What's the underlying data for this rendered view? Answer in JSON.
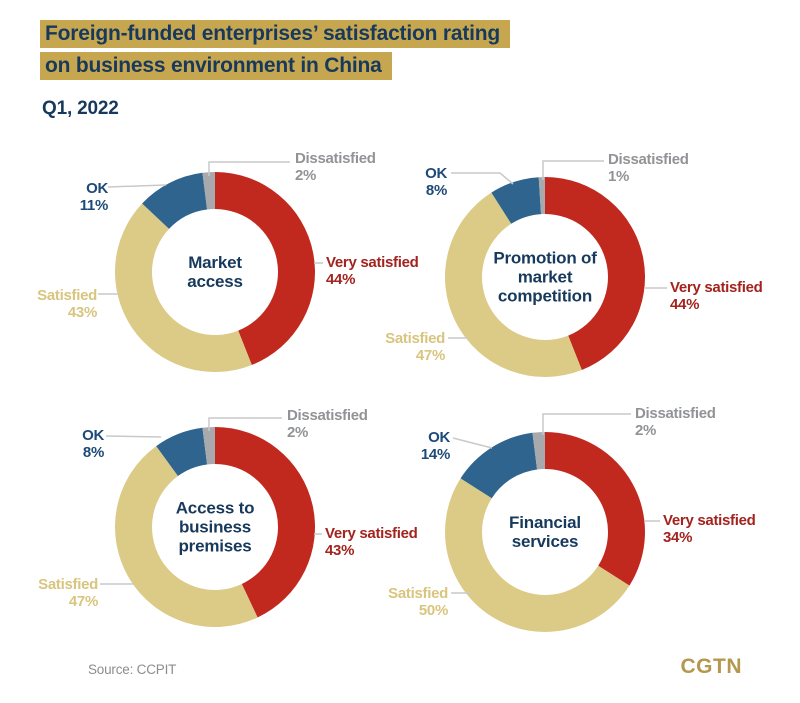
{
  "title": {
    "line1": "Foreign-funded enterprises’ satisfaction rating",
    "line2": "on business environment in China"
  },
  "subtitle": "Q1, 2022",
  "source": "Source: CCPIT",
  "logo": "CGTN",
  "colors": {
    "very_satisfied": "#c1291f",
    "satisfied": "#dcca87",
    "ok": "#2f648f",
    "dissatisfied": "#a7a9ac",
    "label_very_satisfied": "#a3231e",
    "label_satisfied": "#d8c57e",
    "label_ok": "#1d4a78",
    "label_dissatisfied": "#919396",
    "navy_text": "#17395c",
    "title_highlight": "#c6a64f",
    "logo_gold": "#b5984f"
  },
  "chart_data": [
    {
      "type": "donut",
      "title": "Market access",
      "center_text": "Market\naccess",
      "segments": [
        {
          "label": "Very satisfied",
          "value": 44,
          "display": "44%"
        },
        {
          "label": "Satisfied",
          "value": 43,
          "display": "43%"
        },
        {
          "label": "OK",
          "value": 11,
          "display": "11%"
        },
        {
          "label": "Dissatisfied",
          "value": 2,
          "display": "2%"
        }
      ]
    },
    {
      "type": "donut",
      "title": "Promotion of market competition",
      "center_text": "Promotion of\nmarket\ncompetition",
      "segments": [
        {
          "label": "Very satisfied",
          "value": 44,
          "display": "44%"
        },
        {
          "label": "Satisfied",
          "value": 47,
          "display": "47%"
        },
        {
          "label": "OK",
          "value": 8,
          "display": "8%"
        },
        {
          "label": "Dissatisfied",
          "value": 1,
          "display": "1%"
        }
      ]
    },
    {
      "type": "donut",
      "title": "Access to business premises",
      "center_text": "Access to\nbusiness\npremises",
      "segments": [
        {
          "label": "Very satisfied",
          "value": 43,
          "display": "43%"
        },
        {
          "label": "Satisfied",
          "value": 47,
          "display": "47%"
        },
        {
          "label": "OK",
          "value": 8,
          "display": "8%"
        },
        {
          "label": "Dissatisfied",
          "value": 2,
          "display": "2%"
        }
      ]
    },
    {
      "type": "donut",
      "title": "Financial services",
      "center_text": "Financial\nservices",
      "segments": [
        {
          "label": "Very satisfied",
          "value": 34,
          "display": "34%"
        },
        {
          "label": "Satisfied",
          "value": 50,
          "display": "50%"
        },
        {
          "label": "OK",
          "value": 14,
          "display": "14%"
        },
        {
          "label": "Dissatisfied",
          "value": 2,
          "display": "2%"
        }
      ]
    }
  ]
}
